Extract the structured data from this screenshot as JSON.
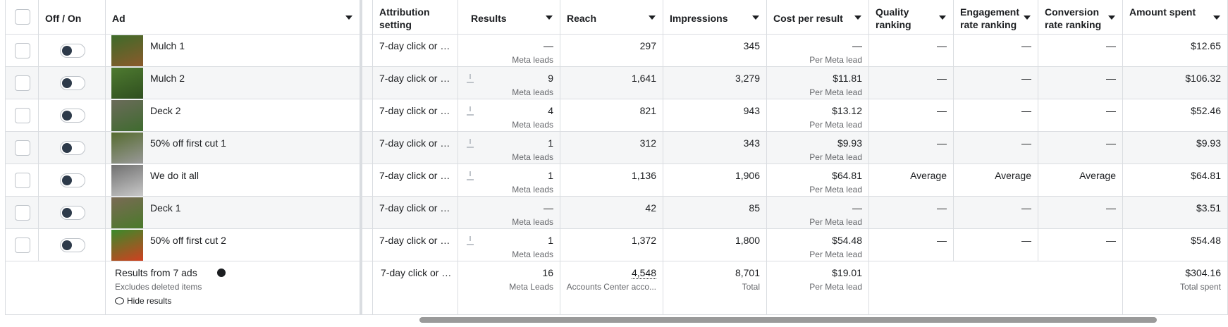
{
  "header": {
    "columns": [
      "Off / On",
      "Ad",
      "Attribution setting",
      "Results",
      "Reach",
      "Impressions",
      "Cost per result",
      "Quality ranking",
      "Engagement rate ranking",
      "Conversion rate ranking",
      "Amount spent"
    ]
  },
  "rows": [
    {
      "ad": "Mulch 1",
      "attribution": "7-day click or …",
      "results": "—",
      "results_unit": "Meta leads",
      "reach": "297",
      "impressions": "345",
      "cost": "—",
      "cost_unit": "Per Meta lead",
      "quality": "—",
      "engagement": "—",
      "conversion": "—",
      "amount": "$12.65"
    },
    {
      "ad": "Mulch 2",
      "attribution": "7-day click or …",
      "results": "9",
      "results_unit": "Meta leads",
      "reach": "1,641",
      "impressions": "3,279",
      "cost": "$11.81",
      "cost_unit": "Per Meta lead",
      "quality": "—",
      "engagement": "—",
      "conversion": "—",
      "amount": "$106.32"
    },
    {
      "ad": "Deck 2",
      "attribution": "7-day click or …",
      "results": "4",
      "results_unit": "Meta leads",
      "reach": "821",
      "impressions": "943",
      "cost": "$13.12",
      "cost_unit": "Per Meta lead",
      "quality": "—",
      "engagement": "—",
      "conversion": "—",
      "amount": "$52.46"
    },
    {
      "ad": "50% off first cut 1",
      "attribution": "7-day click or …",
      "results": "1",
      "results_unit": "Meta leads",
      "reach": "312",
      "impressions": "343",
      "cost": "$9.93",
      "cost_unit": "Per Meta lead",
      "quality": "—",
      "engagement": "—",
      "conversion": "—",
      "amount": "$9.93"
    },
    {
      "ad": "We do it all",
      "attribution": "7-day click or …",
      "results": "1",
      "results_unit": "Meta leads",
      "reach": "1,136",
      "impressions": "1,906",
      "cost": "$64.81",
      "cost_unit": "Per Meta lead",
      "quality": "Average",
      "engagement": "Average",
      "conversion": "Average",
      "amount": "$64.81"
    },
    {
      "ad": "Deck 1",
      "attribution": "7-day click or …",
      "results": "—",
      "results_unit": "Meta leads",
      "reach": "42",
      "impressions": "85",
      "cost": "—",
      "cost_unit": "Per Meta lead",
      "quality": "—",
      "engagement": "—",
      "conversion": "—",
      "amount": "$3.51"
    },
    {
      "ad": "50% off first cut 2",
      "attribution": "7-day click or …",
      "results": "1",
      "results_unit": "Meta leads",
      "reach": "1,372",
      "impressions": "1,800",
      "cost": "$54.48",
      "cost_unit": "Per Meta lead",
      "quality": "—",
      "engagement": "—",
      "conversion": "—",
      "amount": "$54.48"
    }
  ],
  "footer": {
    "ad": "Results from 7 ads",
    "note": "Excludes deleted items",
    "hide": "Hide results",
    "attribution": "7-day click or …",
    "results": "16",
    "results_unit": "Meta Leads",
    "reach": "4,548",
    "reach_unit": "Accounts Center acco...",
    "impressions": "8,701",
    "impressions_unit": "Total",
    "cost": "$19.01",
    "cost_unit": "Per Meta lead",
    "amount": "$304.16",
    "amount_unit": "Total spent"
  }
}
